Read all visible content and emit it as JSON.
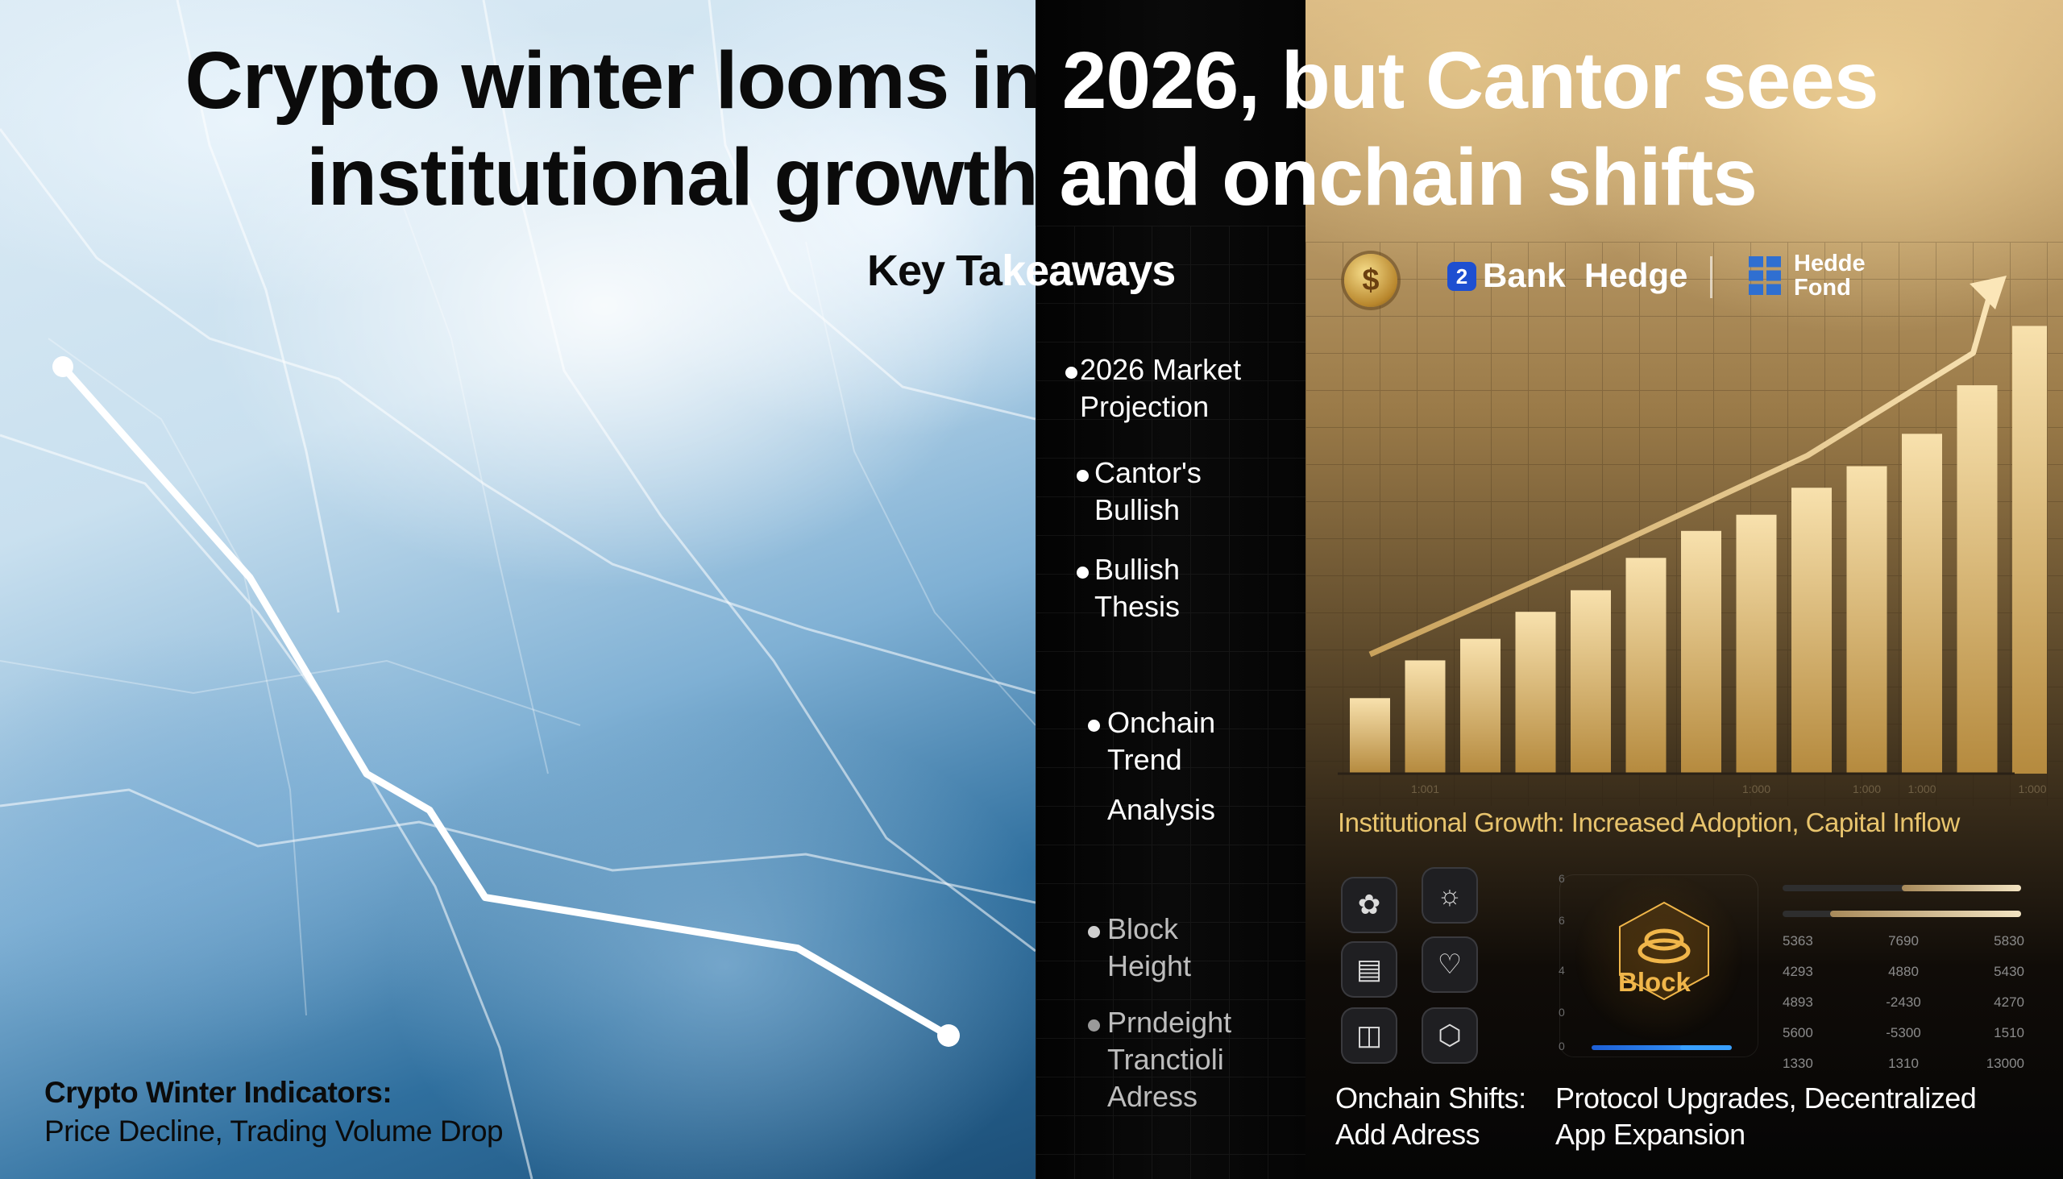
{
  "headline": {
    "line1_dark": "Crypto winter looms in ",
    "line1_light": "2026, but Cantor sees",
    "line2_dark": "institutional growth",
    "line2_light": " and onchain shifts"
  },
  "key_takeaways": {
    "title_dark": "Key Ta",
    "title_light": "keaways",
    "items": [
      {
        "line1": "2026 Market",
        "line2": "Projection"
      },
      {
        "line1": "Cantor's",
        "line2": "Bullish"
      },
      {
        "line1": "Bullish",
        "line2": "Thesis"
      },
      {
        "line1": "Onchain",
        "line2": "Trend",
        "line3": "Analysis"
      },
      {
        "line1": "Block",
        "line2": "Height"
      },
      {
        "line1": "Prndeight",
        "line2": "Tranctioli",
        "line3": "Adress"
      }
    ]
  },
  "logos": {
    "bank_badge": "2",
    "bank_text": "Bank",
    "hedge_text": "Hedge",
    "fund_line1": "Hedde",
    "fund_line2": "Fond"
  },
  "chart_data": {
    "type": "bar",
    "title": "",
    "values": [
      14,
      21,
      25,
      30,
      34,
      40,
      45,
      48,
      53,
      57,
      63,
      72,
      83
    ],
    "trend": "up",
    "x_tick_labels": [
      "1:001",
      "1:000",
      "1:000",
      "1:000",
      "1:000"
    ],
    "grid": true
  },
  "decline_line": {
    "values": [
      100,
      71,
      44,
      39,
      27,
      20,
      8
    ],
    "trend": "down"
  },
  "captions": {
    "institutional": "Institutional Growth: Increased Adoption, Capital Inflow",
    "winter_title": "Crypto Winter Indicators:",
    "winter_sub": "Price Decline, Trading Volume Drop",
    "onchain_left_1": "Onchain Shifts:",
    "onchain_left_2": "Add Adress",
    "onchain_right_1": "Protocol Upgrades, Decentralized",
    "onchain_right_2": "App Expansion"
  },
  "dashboard": {
    "block_label": "Block",
    "axis_numbers": [
      "6",
      "6",
      "4",
      "0",
      "0"
    ],
    "progress": [
      0.5,
      0.8
    ],
    "table_rows": [
      [
        "5363",
        "7690",
        "5830"
      ],
      [
        "4293",
        "4880",
        "5430"
      ],
      [
        "4893",
        "-2430",
        "4270"
      ],
      [
        "5600",
        "-5300",
        "1510"
      ],
      [
        "1330",
        "1310",
        "13000"
      ]
    ],
    "icons": [
      "network-icon",
      "chip-icon",
      "chart-icon",
      "shield-icon",
      "stack-icon",
      "cube-icon"
    ]
  },
  "colors": {
    "gold_accent": "#e8c46d",
    "bar_light": "#f8e1ad",
    "bar_dark": "#b58a3e",
    "block_orange": "#f0b64a"
  }
}
